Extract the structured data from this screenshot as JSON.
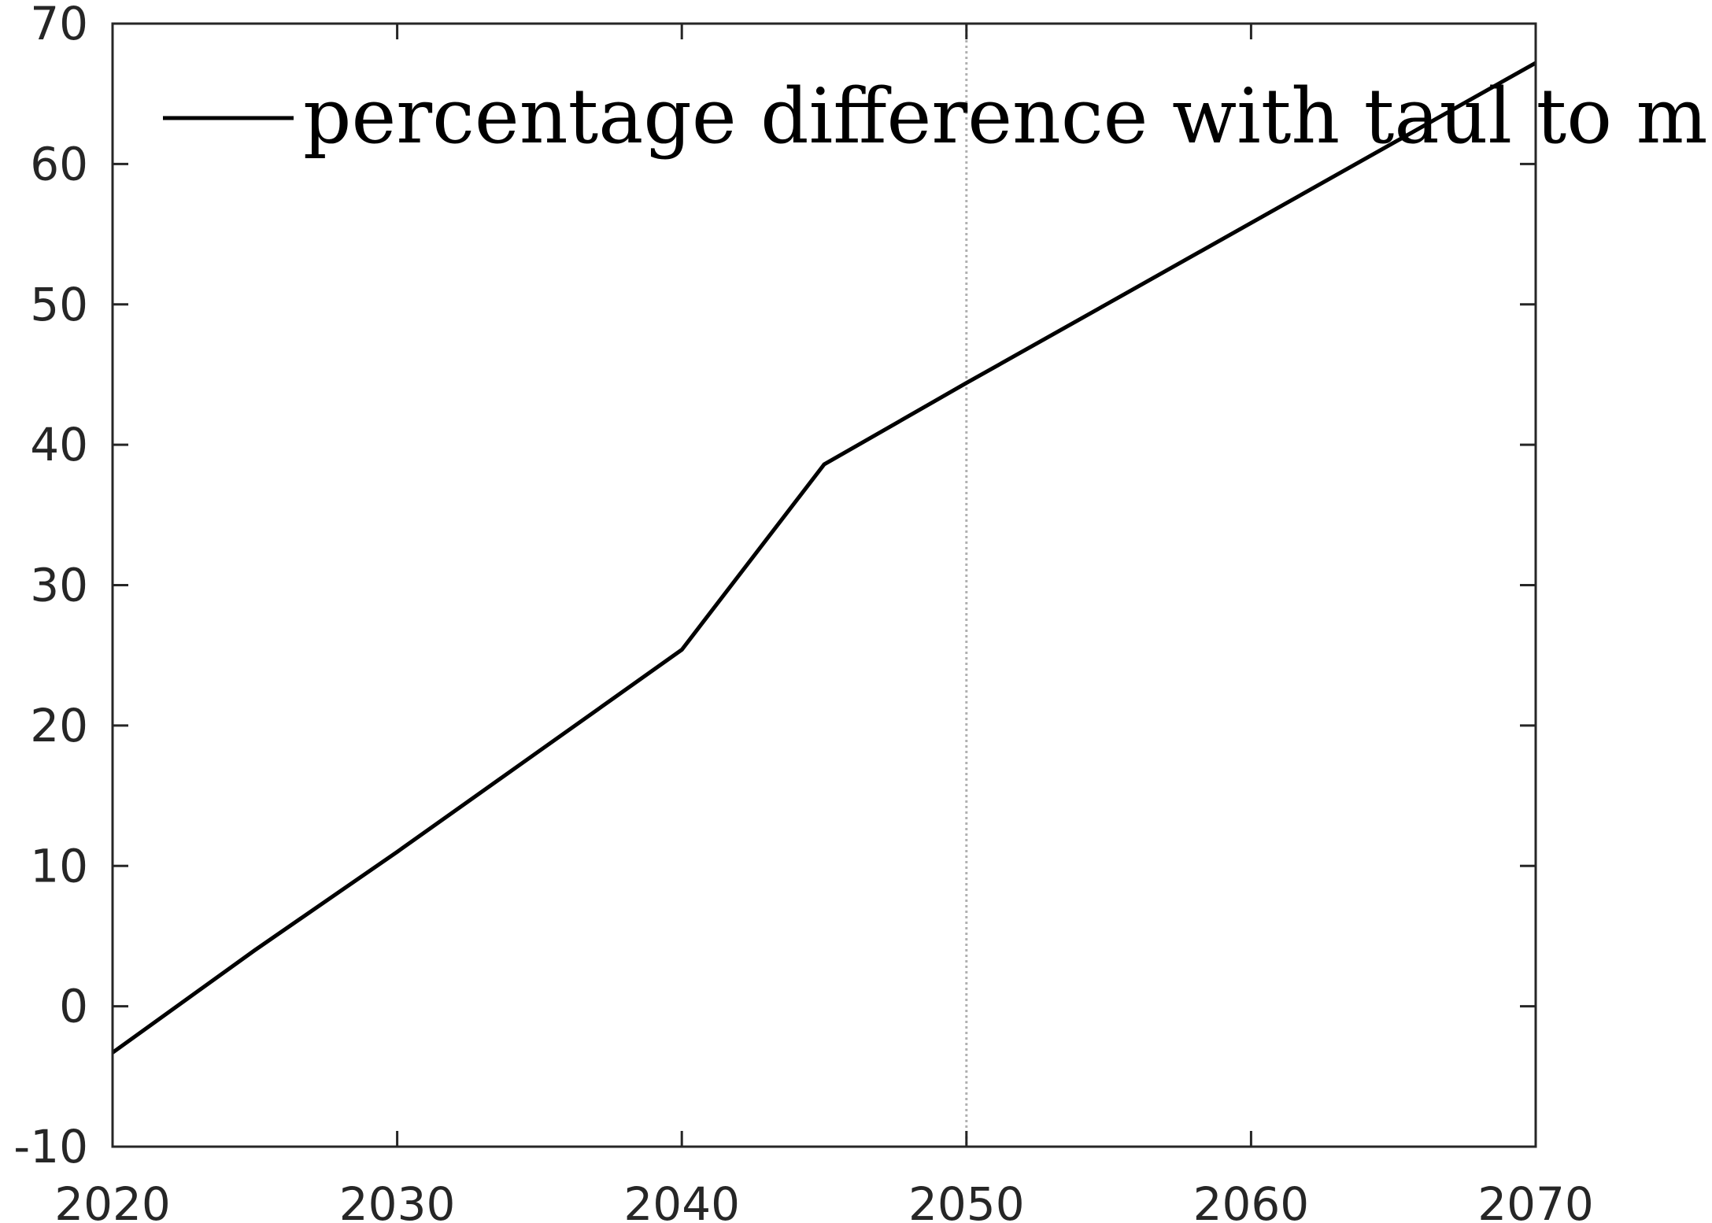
{
  "chart_data": {
    "type": "line",
    "title": "",
    "xlabel": "",
    "ylabel": "",
    "xlim": [
      2020,
      2070
    ],
    "ylim": [
      -10,
      70
    ],
    "x_ticks": [
      2020,
      2030,
      2040,
      2050,
      2060,
      2070
    ],
    "x_tick_labels": [
      "2020",
      "2030",
      "2040",
      "2050",
      "2060",
      "2070"
    ],
    "y_ticks": [
      -10,
      0,
      10,
      20,
      30,
      40,
      50,
      60,
      70
    ],
    "y_tick_labels": [
      "-10",
      "0",
      "10",
      "20",
      "30",
      "40",
      "50",
      "60",
      "70"
    ],
    "grid": false,
    "legend_position": "top-left",
    "reference_lines": [
      {
        "axis": "x",
        "value": 2050,
        "style": "dotted",
        "color": "#b0b0b0"
      }
    ],
    "series": [
      {
        "name": "percentage difference with taul to m",
        "color": "#000000",
        "x": [
          2020,
          2025,
          2030,
          2035,
          2040,
          2045,
          2050,
          2055,
          2060,
          2065,
          2070
        ],
        "y": [
          -3.3,
          4.0,
          11.0,
          18.2,
          25.4,
          38.6,
          44.4,
          50.1,
          55.8,
          61.5,
          67.2
        ]
      }
    ]
  }
}
